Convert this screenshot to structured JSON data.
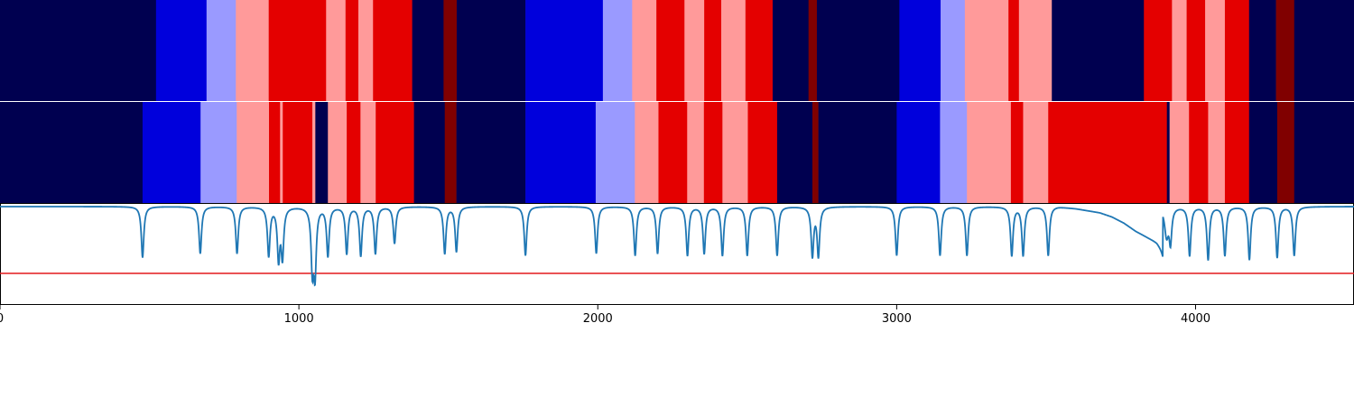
{
  "chart_data": {
    "type": "segmentation-timeline",
    "xlim": [
      0,
      4530
    ],
    "xticks": [
      0,
      1000,
      2000,
      3000,
      4000
    ],
    "xtick_labels": [
      "0",
      "1000",
      "2000",
      "3000",
      "4000"
    ],
    "palette": {
      "navy": "#000050",
      "blue": "#0000dc",
      "lightblue": "#9a9aff",
      "pink": "#ff9a9a",
      "red": "#e40000",
      "darkred": "#800000",
      "line": "#1f77b4",
      "threshold": "#e41a1c"
    },
    "tracks": [
      {
        "segments": [
          {
            "start": 0,
            "end": 522,
            "class": "navy"
          },
          {
            "start": 522,
            "end": 691,
            "class": "blue"
          },
          {
            "start": 691,
            "end": 789,
            "class": "lightblue"
          },
          {
            "start": 789,
            "end": 899,
            "class": "pink"
          },
          {
            "start": 899,
            "end": 1091,
            "class": "red"
          },
          {
            "start": 1091,
            "end": 1156,
            "class": "pink"
          },
          {
            "start": 1156,
            "end": 1199,
            "class": "red"
          },
          {
            "start": 1199,
            "end": 1248,
            "class": "pink"
          },
          {
            "start": 1248,
            "end": 1379,
            "class": "red"
          },
          {
            "start": 1379,
            "end": 1484,
            "class": "navy"
          },
          {
            "start": 1484,
            "end": 1528,
            "class": "darkred"
          },
          {
            "start": 1528,
            "end": 1758,
            "class": "navy"
          },
          {
            "start": 1758,
            "end": 2017,
            "class": "blue"
          },
          {
            "start": 2017,
            "end": 2115,
            "class": "lightblue"
          },
          {
            "start": 2115,
            "end": 2196,
            "class": "pink"
          },
          {
            "start": 2196,
            "end": 2290,
            "class": "red"
          },
          {
            "start": 2290,
            "end": 2356,
            "class": "pink"
          },
          {
            "start": 2356,
            "end": 2413,
            "class": "red"
          },
          {
            "start": 2413,
            "end": 2494,
            "class": "pink"
          },
          {
            "start": 2494,
            "end": 2585,
            "class": "red"
          },
          {
            "start": 2585,
            "end": 2705,
            "class": "navy"
          },
          {
            "start": 2705,
            "end": 2733,
            "class": "darkred"
          },
          {
            "start": 2733,
            "end": 3009,
            "class": "navy"
          },
          {
            "start": 3009,
            "end": 3147,
            "class": "blue"
          },
          {
            "start": 3147,
            "end": 3228,
            "class": "lightblue"
          },
          {
            "start": 3228,
            "end": 3374,
            "class": "pink"
          },
          {
            "start": 3374,
            "end": 3409,
            "class": "red"
          },
          {
            "start": 3409,
            "end": 3519,
            "class": "pink"
          },
          {
            "start": 3519,
            "end": 3827,
            "class": "navy"
          },
          {
            "start": 3827,
            "end": 3921,
            "class": "red"
          },
          {
            "start": 3921,
            "end": 3970,
            "class": "pink"
          },
          {
            "start": 3970,
            "end": 4032,
            "class": "red"
          },
          {
            "start": 4032,
            "end": 4098,
            "class": "pink"
          },
          {
            "start": 4098,
            "end": 4179,
            "class": "red"
          },
          {
            "start": 4179,
            "end": 4269,
            "class": "navy"
          },
          {
            "start": 4269,
            "end": 4330,
            "class": "darkred"
          },
          {
            "start": 4330,
            "end": 4530,
            "class": "navy"
          }
        ]
      },
      {
        "segments": [
          {
            "start": 0,
            "end": 477,
            "class": "navy"
          },
          {
            "start": 477,
            "end": 671,
            "class": "blue"
          },
          {
            "start": 671,
            "end": 792,
            "class": "lightblue"
          },
          {
            "start": 792,
            "end": 900,
            "class": "pink"
          },
          {
            "start": 900,
            "end": 937,
            "class": "red"
          },
          {
            "start": 937,
            "end": 946,
            "class": "pink"
          },
          {
            "start": 946,
            "end": 1045,
            "class": "red"
          },
          {
            "start": 1045,
            "end": 1055,
            "class": "pink"
          },
          {
            "start": 1055,
            "end": 1097,
            "class": "navy"
          },
          {
            "start": 1097,
            "end": 1160,
            "class": "pink"
          },
          {
            "start": 1160,
            "end": 1206,
            "class": "red"
          },
          {
            "start": 1206,
            "end": 1257,
            "class": "pink"
          },
          {
            "start": 1257,
            "end": 1385,
            "class": "red"
          },
          {
            "start": 1385,
            "end": 1488,
            "class": "navy"
          },
          {
            "start": 1488,
            "end": 1527,
            "class": "darkred"
          },
          {
            "start": 1527,
            "end": 1758,
            "class": "navy"
          },
          {
            "start": 1758,
            "end": 1993,
            "class": "blue"
          },
          {
            "start": 1993,
            "end": 2124,
            "class": "lightblue"
          },
          {
            "start": 2124,
            "end": 2203,
            "class": "pink"
          },
          {
            "start": 2203,
            "end": 2299,
            "class": "red"
          },
          {
            "start": 2299,
            "end": 2355,
            "class": "pink"
          },
          {
            "start": 2355,
            "end": 2417,
            "class": "red"
          },
          {
            "start": 2417,
            "end": 2502,
            "class": "pink"
          },
          {
            "start": 2502,
            "end": 2600,
            "class": "red"
          },
          {
            "start": 2600,
            "end": 2718,
            "class": "navy"
          },
          {
            "start": 2718,
            "end": 2738,
            "class": "darkred"
          },
          {
            "start": 2738,
            "end": 3000,
            "class": "navy"
          },
          {
            "start": 3000,
            "end": 3145,
            "class": "blue"
          },
          {
            "start": 3145,
            "end": 3235,
            "class": "lightblue"
          },
          {
            "start": 3235,
            "end": 3382,
            "class": "pink"
          },
          {
            "start": 3382,
            "end": 3423,
            "class": "red"
          },
          {
            "start": 3423,
            "end": 3507,
            "class": "pink"
          },
          {
            "start": 3507,
            "end": 3904,
            "class": "red"
          },
          {
            "start": 3904,
            "end": 3913,
            "class": "navy"
          },
          {
            "start": 3913,
            "end": 3978,
            "class": "pink"
          },
          {
            "start": 3978,
            "end": 4042,
            "class": "red"
          },
          {
            "start": 4042,
            "end": 4098,
            "class": "pink"
          },
          {
            "start": 4098,
            "end": 4179,
            "class": "red"
          },
          {
            "start": 4179,
            "end": 4273,
            "class": "navy"
          },
          {
            "start": 4273,
            "end": 4330,
            "class": "darkred"
          },
          {
            "start": 4330,
            "end": 4530,
            "class": "navy"
          }
        ]
      }
    ],
    "signal": {
      "ylim": [
        0,
        1
      ],
      "threshold": 0.31,
      "baseline": 0.965,
      "dips": [
        {
          "x": 477,
          "depth": 0.5,
          "width": 5
        },
        {
          "x": 670,
          "depth": 0.46,
          "width": 5
        },
        {
          "x": 793,
          "depth": 0.46,
          "width": 5
        },
        {
          "x": 899,
          "depth": 0.48,
          "width": 5
        },
        {
          "x": 932,
          "depth": 0.5,
          "width": 5
        },
        {
          "x": 945,
          "depth": 0.48,
          "width": 5
        },
        {
          "x": 1045,
          "depth": 0.58,
          "width": 5
        },
        {
          "x": 1054,
          "depth": 0.62,
          "width": 5
        },
        {
          "x": 1097,
          "depth": 0.48,
          "width": 5
        },
        {
          "x": 1160,
          "depth": 0.46,
          "width": 5
        },
        {
          "x": 1207,
          "depth": 0.48,
          "width": 5
        },
        {
          "x": 1256,
          "depth": 0.46,
          "width": 5
        },
        {
          "x": 1320,
          "depth": 0.36,
          "width": 5
        },
        {
          "x": 1488,
          "depth": 0.46,
          "width": 5
        },
        {
          "x": 1527,
          "depth": 0.44,
          "width": 5
        },
        {
          "x": 1758,
          "depth": 0.48,
          "width": 5
        },
        {
          "x": 1995,
          "depth": 0.46,
          "width": 5
        },
        {
          "x": 2125,
          "depth": 0.48,
          "width": 5
        },
        {
          "x": 2200,
          "depth": 0.46,
          "width": 5
        },
        {
          "x": 2300,
          "depth": 0.48,
          "width": 5
        },
        {
          "x": 2356,
          "depth": 0.46,
          "width": 5
        },
        {
          "x": 2417,
          "depth": 0.48,
          "width": 5
        },
        {
          "x": 2500,
          "depth": 0.48,
          "width": 5
        },
        {
          "x": 2600,
          "depth": 0.48,
          "width": 5
        },
        {
          "x": 2718,
          "depth": 0.48,
          "width": 5
        },
        {
          "x": 2738,
          "depth": 0.48,
          "width": 5
        },
        {
          "x": 3000,
          "depth": 0.48,
          "width": 5
        },
        {
          "x": 3145,
          "depth": 0.48,
          "width": 5
        },
        {
          "x": 3235,
          "depth": 0.48,
          "width": 5
        },
        {
          "x": 3385,
          "depth": 0.48,
          "width": 5
        },
        {
          "x": 3423,
          "depth": 0.48,
          "width": 5
        },
        {
          "x": 3507,
          "depth": 0.48,
          "width": 5
        },
        {
          "x": 3903,
          "depth": 0.28,
          "width": 8
        },
        {
          "x": 3916,
          "depth": 0.32,
          "width": 5
        },
        {
          "x": 3980,
          "depth": 0.48,
          "width": 5
        },
        {
          "x": 4042,
          "depth": 0.52,
          "width": 5
        },
        {
          "x": 4098,
          "depth": 0.48,
          "width": 5
        },
        {
          "x": 4180,
          "depth": 0.52,
          "width": 5
        },
        {
          "x": 4273,
          "depth": 0.5,
          "width": 5
        },
        {
          "x": 4330,
          "depth": 0.48,
          "width": 5
        }
      ],
      "ramp": [
        {
          "x": 3540,
          "drop": 0.0
        },
        {
          "x": 3600,
          "drop": 0.02
        },
        {
          "x": 3680,
          "drop": 0.06
        },
        {
          "x": 3720,
          "drop": 0.1
        },
        {
          "x": 3760,
          "drop": 0.16
        },
        {
          "x": 3800,
          "drop": 0.24
        },
        {
          "x": 3840,
          "drop": 0.3
        },
        {
          "x": 3870,
          "drop": 0.34
        },
        {
          "x": 3890,
          "drop": 0.4
        }
      ]
    }
  }
}
